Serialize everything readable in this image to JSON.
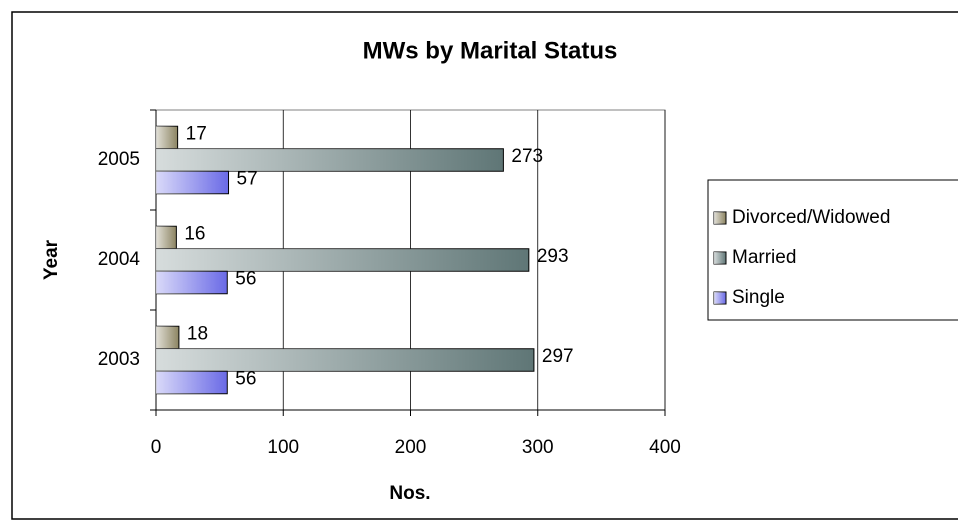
{
  "chart_data": {
    "type": "hbar",
    "title": "MWs by Marital Status",
    "x_label": "Nos.",
    "y_label": "Year",
    "categories": [
      "2003",
      "2004",
      "2005"
    ],
    "series": [
      {
        "name": "Divorced/Widowed",
        "color": "#8c8462",
        "values": [
          18,
          16,
          17
        ]
      },
      {
        "name": "Married",
        "color": "#5f7676",
        "values": [
          297,
          293,
          273
        ]
      },
      {
        "name": "Single",
        "color": "#6a6ae6",
        "values": [
          56,
          56,
          57
        ]
      }
    ],
    "xlim": [
      0,
      400
    ],
    "xticks": [
      0,
      100,
      200,
      300,
      400
    ],
    "grid": true,
    "legend": "right"
  }
}
